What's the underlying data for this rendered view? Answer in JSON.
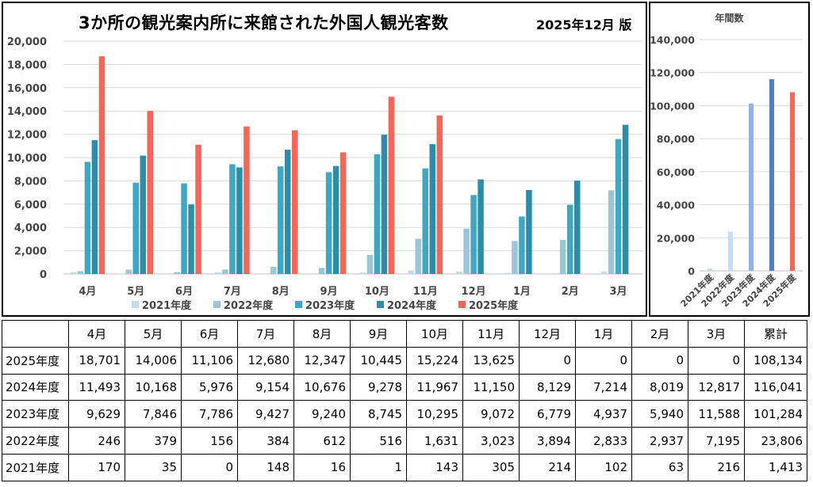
{
  "title": "3か所の観光案内所に来館された外国人観光客数",
  "version": "2025年12月 版",
  "annual_title": "年間数",
  "colors": {
    "2021年度": "#C3DCEA",
    "2022年度": "#9CC5D6",
    "2023年度": "#3FA7C2",
    "2024年度": "#2E8DA6",
    "2025年度": "#F4655A"
  },
  "annual_colors": [
    "#C3DCEA",
    "#C8DDF0",
    "#8EB4E3",
    "#4E7FCC",
    "#F4655A"
  ],
  "chart_data": [
    {
      "type": "bar",
      "categories": [
        "4月",
        "5月",
        "6月",
        "7月",
        "8月",
        "9月",
        "10月",
        "11月",
        "12月",
        "1月",
        "2月",
        "3月"
      ],
      "series": [
        {
          "name": "2021年度",
          "values": [
            170,
            35,
            0,
            148,
            16,
            1,
            143,
            305,
            214,
            102,
            63,
            216
          ]
        },
        {
          "name": "2022年度",
          "values": [
            246,
            379,
            156,
            384,
            612,
            516,
            1631,
            3023,
            3894,
            2833,
            2937,
            7195
          ]
        },
        {
          "name": "2023年度",
          "values": [
            9629,
            7846,
            7786,
            9427,
            9240,
            8745,
            10295,
            9072,
            6779,
            4937,
            5940,
            11588
          ]
        },
        {
          "name": "2024年度",
          "values": [
            11493,
            10168,
            5976,
            9154,
            10676,
            9278,
            11967,
            11150,
            8129,
            7214,
            8019,
            12817
          ]
        },
        {
          "name": "2025年度",
          "values": [
            18701,
            14006,
            11106,
            12680,
            12347,
            10445,
            15224,
            13625,
            0,
            0,
            0,
            0
          ]
        }
      ],
      "yticks": [
        "0",
        "2,000",
        "4,000",
        "6,000",
        "8,000",
        "10,000",
        "12,000",
        "14,000",
        "16,000",
        "18,000",
        "20,000"
      ],
      "ylim": [
        0,
        20000
      ],
      "legend_position": "bottom"
    },
    {
      "type": "bar",
      "title": "年間数",
      "categories": [
        "2021年度",
        "2022年度",
        "2023年度",
        "2024年度",
        "2025年度"
      ],
      "values": [
        1413,
        23806,
        101284,
        116041,
        108134
      ],
      "yticks": [
        "0",
        "20,000",
        "40,000",
        "60,000",
        "80,000",
        "100,000",
        "120,000",
        "140,000"
      ],
      "ylim": [
        0,
        140000
      ]
    }
  ],
  "table": {
    "header": [
      "",
      "4月",
      "5月",
      "6月",
      "7月",
      "8月",
      "9月",
      "10月",
      "11月",
      "12月",
      "1月",
      "2月",
      "3月",
      "累計"
    ],
    "rows": [
      [
        "2025年度",
        "18,701",
        "14,006",
        "11,106",
        "12,680",
        "12,347",
        "10,445",
        "15,224",
        "13,625",
        "0",
        "0",
        "0",
        "0",
        "108,134"
      ],
      [
        "2024年度",
        "11,493",
        "10,168",
        "5,976",
        "9,154",
        "10,676",
        "9,278",
        "11,967",
        "11,150",
        "8,129",
        "7,214",
        "8,019",
        "12,817",
        "116,041"
      ],
      [
        "2023年度",
        "9,629",
        "7,846",
        "7,786",
        "9,427",
        "9,240",
        "8,745",
        "10,295",
        "9,072",
        "6,779",
        "4,937",
        "5,940",
        "11,588",
        "101,284"
      ],
      [
        "2022年度",
        "246",
        "379",
        "156",
        "384",
        "612",
        "516",
        "1,631",
        "3,023",
        "3,894",
        "2,833",
        "2,937",
        "7,195",
        "23,806"
      ],
      [
        "2021年度",
        "170",
        "35",
        "0",
        "148",
        "16",
        "1",
        "143",
        "305",
        "214",
        "102",
        "63",
        "216",
        "1,413"
      ]
    ]
  }
}
